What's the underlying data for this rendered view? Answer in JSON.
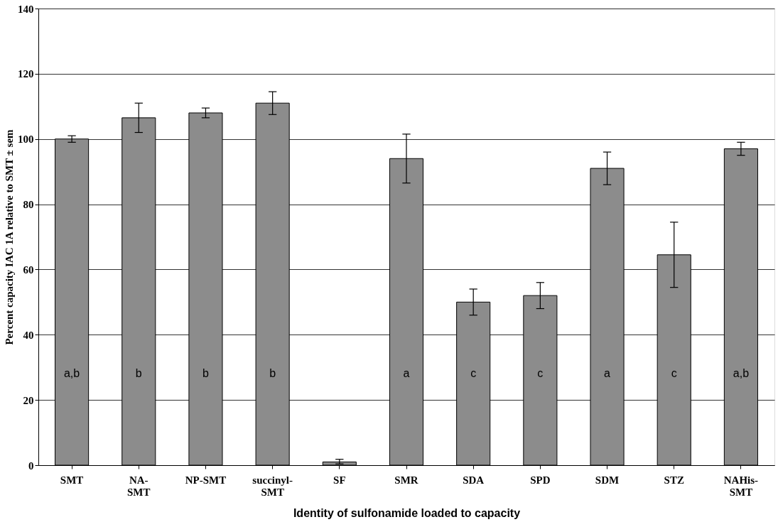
{
  "chart_data": {
    "type": "bar",
    "xlabel": "Identity of sulfonamide loaded to capacity",
    "ylabel": "Percent capacity IAC 1A relative to SMT ± sem",
    "categories": [
      "SMT",
      "NA-\nSMT",
      "NP-SMT",
      "succinyl-\nSMT",
      "SF",
      "SMR",
      "SDA",
      "SPD",
      "SDM",
      "STZ",
      "NAHis-\nSMT"
    ],
    "values": [
      100,
      106.5,
      108,
      111,
      1,
      94,
      50,
      52,
      91,
      64.5,
      97
    ],
    "errors": [
      1,
      4.5,
      1.5,
      3.5,
      [
        0.4,
        1.8
      ],
      7.5,
      4,
      4,
      5,
      10,
      2
    ],
    "color": "#8c8c8c",
    "ylim": [
      0,
      140
    ],
    "yticks": [
      0,
      20,
      40,
      60,
      80,
      100,
      120,
      140
    ],
    "grid": "y",
    "annotations": [
      "a,b",
      "b",
      "b",
      "b",
      "a",
      "c",
      "c",
      "a",
      "c",
      "a,b"
    ]
  }
}
